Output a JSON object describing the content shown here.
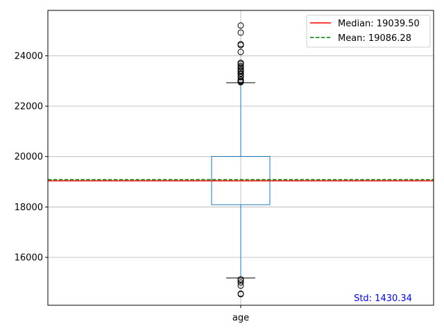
{
  "chart_data": {
    "type": "box",
    "categories": [
      "age"
    ],
    "ylim": [
      14100,
      25800
    ],
    "yticks": [
      16000,
      18000,
      20000,
      22000,
      24000
    ],
    "ytick_labels": [
      "16000",
      "18000",
      "20000",
      "22000",
      "24000"
    ],
    "grid": true,
    "box": {
      "q1": 18090,
      "median": 19039.5,
      "q3": 20005,
      "whisker_low": 15180,
      "whisker_high": 22930
    },
    "outliers": [
      14540,
      14560,
      14880,
      15000,
      15080,
      15130,
      22950,
      22980,
      23000,
      23050,
      23150,
      23200,
      23280,
      23300,
      23380,
      23420,
      23480,
      23550,
      23600,
      23680,
      23720,
      24150,
      24420,
      24460,
      24920,
      25200
    ],
    "median_line": {
      "value": 19039.5,
      "label": "Median: 19039.50",
      "color": "#ff0000",
      "style": "solid"
    },
    "mean_line": {
      "value": 19086.28,
      "label": "Mean: 19086.28",
      "color": "#008000",
      "style": "dashed"
    },
    "std_annotation": {
      "text": "Std: 1430.34",
      "color": "#0000ff"
    },
    "legend_placement": "top-right",
    "colors": {
      "box": "#1f77b4",
      "grid": "#b0b0b0",
      "outlier": "#000000"
    }
  }
}
